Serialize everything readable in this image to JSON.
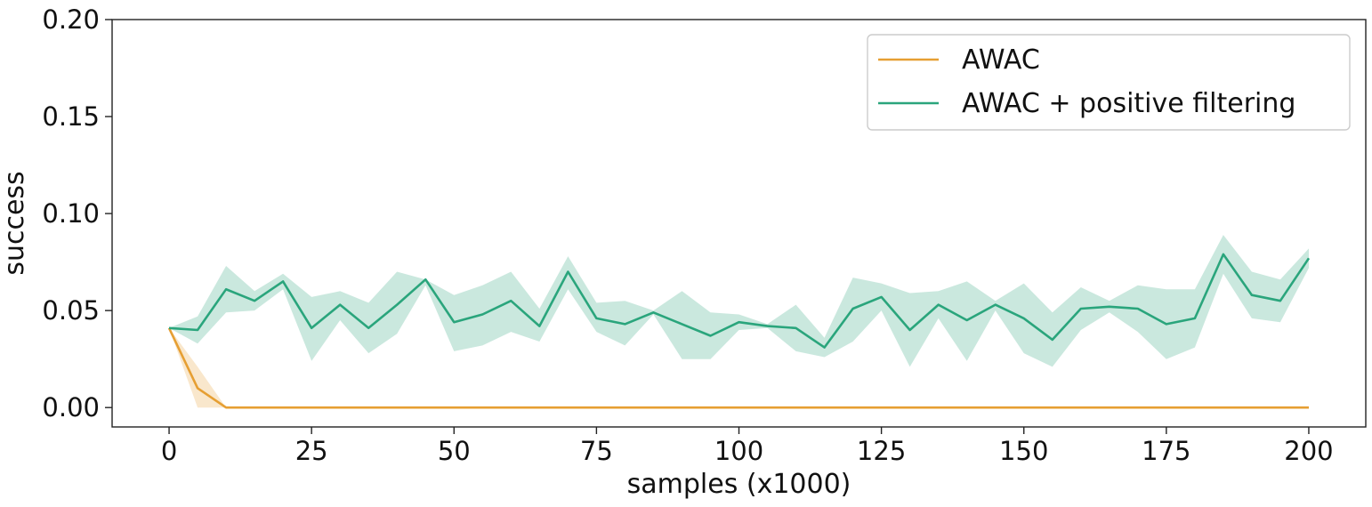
{
  "chart_data": {
    "type": "line",
    "title": "",
    "xlabel": "samples (x1000)",
    "ylabel": "success",
    "xlim": [
      -10,
      210
    ],
    "ylim": [
      -0.01,
      0.2
    ],
    "xticks": [
      0,
      25,
      50,
      75,
      100,
      125,
      150,
      175,
      200
    ],
    "xtick_labels": [
      "0",
      "25",
      "50",
      "75",
      "100",
      "125",
      "150",
      "175",
      "200"
    ],
    "yticks": [
      0,
      0.05,
      0.1,
      0.15,
      0.2
    ],
    "ytick_labels": [
      "0.00",
      "0.05",
      "0.10",
      "0.15",
      "0.20"
    ],
    "grid": false,
    "legend_position": "top-right",
    "series": [
      {
        "name": "AWAC",
        "color": "#e69f33",
        "x": [
          0,
          5,
          10,
          15,
          20,
          25,
          30,
          35,
          40,
          45,
          50,
          55,
          60,
          65,
          70,
          75,
          80,
          85,
          90,
          95,
          100,
          105,
          110,
          115,
          120,
          125,
          130,
          135,
          140,
          145,
          150,
          155,
          160,
          165,
          170,
          175,
          180,
          185,
          190,
          195,
          200
        ],
        "y": [
          0.041,
          0.01,
          0.0,
          0.0,
          0.0,
          0.0,
          0.0,
          0.0,
          0.0,
          0.0,
          0.0,
          0.0,
          0.0,
          0.0,
          0.0,
          0.0,
          0.0,
          0.0,
          0.0,
          0.0,
          0.0,
          0.0,
          0.0,
          0.0,
          0.0,
          0.0,
          0.0,
          0.0,
          0.0,
          0.0,
          0.0,
          0.0,
          0.0,
          0.0,
          0.0,
          0.0,
          0.0,
          0.0,
          0.0,
          0.0,
          0.0
        ],
        "y_lower": [
          0.041,
          0.0,
          0.0,
          0.0,
          0.0,
          0.0,
          0.0,
          0.0,
          0.0,
          0.0,
          0.0,
          0.0,
          0.0,
          0.0,
          0.0,
          0.0,
          0.0,
          0.0,
          0.0,
          0.0,
          0.0,
          0.0,
          0.0,
          0.0,
          0.0,
          0.0,
          0.0,
          0.0,
          0.0,
          0.0,
          0.0,
          0.0,
          0.0,
          0.0,
          0.0,
          0.0,
          0.0,
          0.0,
          0.0,
          0.0,
          0.0
        ],
        "y_upper": [
          0.041,
          0.021,
          0.0,
          0.0,
          0.0,
          0.0,
          0.0,
          0.0,
          0.0,
          0.0,
          0.0,
          0.0,
          0.0,
          0.0,
          0.0,
          0.0,
          0.0,
          0.0,
          0.0,
          0.0,
          0.0,
          0.0,
          0.0,
          0.0,
          0.0,
          0.0,
          0.0,
          0.0,
          0.0,
          0.0,
          0.0,
          0.0,
          0.0,
          0.0,
          0.0,
          0.0,
          0.0,
          0.0,
          0.0,
          0.0,
          0.0
        ]
      },
      {
        "name": "AWAC + positive filtering",
        "color": "#2aa57c",
        "x": [
          0,
          5,
          10,
          15,
          20,
          25,
          30,
          35,
          40,
          45,
          50,
          55,
          60,
          65,
          70,
          75,
          80,
          85,
          90,
          95,
          100,
          105,
          110,
          115,
          120,
          125,
          130,
          135,
          140,
          145,
          150,
          155,
          160,
          165,
          170,
          175,
          180,
          185,
          190,
          195,
          200
        ],
        "y": [
          0.041,
          0.04,
          0.061,
          0.055,
          0.065,
          0.041,
          0.053,
          0.041,
          0.053,
          0.066,
          0.044,
          0.048,
          0.055,
          0.042,
          0.07,
          0.046,
          0.043,
          0.049,
          0.043,
          0.037,
          0.044,
          0.042,
          0.041,
          0.031,
          0.051,
          0.057,
          0.04,
          0.053,
          0.045,
          0.053,
          0.046,
          0.035,
          0.051,
          0.052,
          0.051,
          0.043,
          0.046,
          0.079,
          0.058,
          0.055,
          0.077
        ],
        "y_lower": [
          0.041,
          0.033,
          0.049,
          0.05,
          0.061,
          0.024,
          0.045,
          0.028,
          0.038,
          0.063,
          0.029,
          0.032,
          0.039,
          0.034,
          0.061,
          0.039,
          0.032,
          0.048,
          0.025,
          0.025,
          0.04,
          0.041,
          0.029,
          0.026,
          0.034,
          0.05,
          0.021,
          0.046,
          0.024,
          0.05,
          0.028,
          0.021,
          0.04,
          0.049,
          0.039,
          0.025,
          0.031,
          0.069,
          0.046,
          0.044,
          0.072
        ],
        "y_upper": [
          0.041,
          0.047,
          0.073,
          0.06,
          0.069,
          0.057,
          0.06,
          0.054,
          0.07,
          0.066,
          0.058,
          0.063,
          0.07,
          0.051,
          0.078,
          0.054,
          0.055,
          0.05,
          0.06,
          0.049,
          0.048,
          0.043,
          0.053,
          0.036,
          0.067,
          0.064,
          0.059,
          0.06,
          0.065,
          0.055,
          0.064,
          0.049,
          0.062,
          0.055,
          0.063,
          0.061,
          0.061,
          0.089,
          0.07,
          0.066,
          0.082
        ]
      }
    ]
  }
}
